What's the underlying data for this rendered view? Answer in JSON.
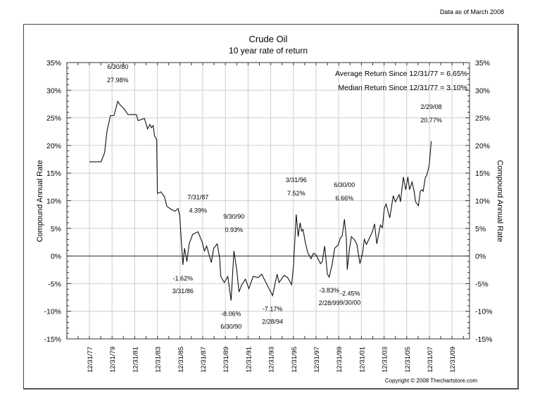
{
  "header": {
    "as_of": "Data as of March 2008"
  },
  "footer": {
    "copyright": "Copyright © 2008 Thechartstore.com"
  },
  "chart_data": {
    "type": "line",
    "title": "Crude Oil",
    "subtitle": "10 year rate of return",
    "xlabel": "",
    "ylabel": "Compound Annual Rate",
    "ylabel_right": "Compound Annual Rate",
    "ylim": [
      -15,
      35
    ],
    "xlim": [
      1976.0,
      2011.6
    ],
    "grid": true,
    "y_ticks": [
      35,
      30,
      25,
      20,
      15,
      10,
      5,
      0,
      -5,
      -10,
      -15
    ],
    "y_tick_labels": [
      "35%",
      "30%",
      "25%",
      "20%",
      "15%",
      "10%",
      "5%",
      "0%",
      "-5%",
      "-10%",
      "-15%"
    ],
    "x_ticks": [
      1978,
      1980,
      1982,
      1984,
      1986,
      1988,
      1990,
      1992,
      1994,
      1996,
      1998,
      2000,
      2002,
      2004,
      2006,
      2008,
      2010
    ],
    "x_tick_labels": [
      "12/31/77",
      "12/31/79",
      "12/31/81",
      "12/31/83",
      "12/31/85",
      "12/31/87",
      "12/31/89",
      "12/31/91",
      "12/31/93",
      "12/31/95",
      "12/31/97",
      "12/31/99",
      "12/31/01",
      "12/31/03",
      "12/31/05",
      "12/31/07",
      "12/31/09"
    ],
    "stats": [
      "Average Return Since 12/31/77 = 6.65%",
      "Median Return Since 12/31/77 = 3.10%"
    ],
    "series": [
      {
        "name": "Crude Oil 10 year rate of return",
        "x": [
          1978.0,
          1979.03,
          1979.34,
          1979.55,
          1979.86,
          1980.17,
          1980.5,
          1980.69,
          1981.06,
          1981.41,
          1982.14,
          1982.3,
          1982.86,
          1983.13,
          1983.34,
          1983.48,
          1983.63,
          1983.75,
          1983.94,
          1984.0,
          1984.31,
          1984.62,
          1984.83,
          1985.24,
          1985.55,
          1985.82,
          1985.97,
          1986.25,
          1986.39,
          1986.6,
          1986.8,
          1987.11,
          1987.58,
          1987.94,
          1988.15,
          1988.35,
          1988.76,
          1988.97,
          1989.28,
          1989.49,
          1989.59,
          1989.9,
          1990.21,
          1990.5,
          1990.75,
          1991.0,
          1991.2,
          1991.45,
          1991.77,
          1992.07,
          1992.45,
          1992.9,
          1993.2,
          1993.63,
          1994.16,
          1994.56,
          1994.73,
          1995.18,
          1995.49,
          1995.84,
          1996.0,
          1996.25,
          1996.42,
          1996.59,
          1996.73,
          1996.85,
          1997.04,
          1997.25,
          1997.56,
          1997.77,
          1998.0,
          1998.39,
          1998.55,
          1998.76,
          1999.0,
          1999.16,
          1999.43,
          1999.64,
          1999.95,
          2000.15,
          2000.3,
          2000.5,
          2000.68,
          2000.75,
          2000.95,
          2001.12,
          2001.4,
          2001.6,
          2001.87,
          2002.1,
          2002.26,
          2002.45,
          2002.7,
          2002.95,
          2003.16,
          2003.36,
          2003.67,
          2003.85,
          2004.02,
          2004.18,
          2004.5,
          2004.81,
          2005.0,
          2005.33,
          2005.45,
          2005.7,
          2005.91,
          2006.1,
          2006.25,
          2006.47,
          2006.65,
          2006.78,
          2007.03,
          2007.19,
          2007.35,
          2007.45,
          2007.65,
          2007.75,
          2007.98,
          2008.06,
          2008.16
        ],
        "y": [
          17.05,
          17.05,
          18.7,
          22.6,
          25.4,
          25.4,
          27.98,
          27.4,
          26.6,
          25.6,
          25.6,
          24.5,
          24.9,
          23.0,
          23.8,
          23.2,
          23.6,
          21.7,
          21.1,
          11.3,
          11.6,
          10.7,
          9.0,
          8.4,
          8.1,
          8.6,
          7.3,
          -1.62,
          1.4,
          -1.0,
          2.2,
          3.9,
          4.39,
          2.6,
          0.9,
          1.8,
          -1.2,
          1.4,
          2.2,
          -0.3,
          -3.7,
          -4.8,
          -3.7,
          -8.06,
          0.93,
          -2.5,
          -6.5,
          -5.2,
          -4.2,
          -5.9,
          -3.7,
          -3.9,
          -3.3,
          -5.0,
          -7.17,
          -3.3,
          -4.8,
          -3.5,
          -3.9,
          -5.2,
          -2.0,
          7.52,
          3.5,
          6.0,
          4.5,
          4.8,
          2.6,
          0.7,
          -0.5,
          0.5,
          0.2,
          -1.4,
          -1.0,
          1.8,
          -3.3,
          -3.83,
          -1.4,
          1.4,
          2.0,
          3.3,
          3.6,
          6.66,
          3.0,
          -2.45,
          1.4,
          3.5,
          2.9,
          2.1,
          -1.4,
          0.5,
          3.0,
          2.1,
          3.2,
          4.3,
          5.8,
          2.2,
          5.6,
          5.1,
          8.6,
          9.4,
          6.9,
          10.9,
          9.8,
          11.1,
          9.8,
          14.3,
          12.0,
          14.3,
          12.0,
          13.4,
          11.7,
          9.8,
          9.1,
          11.7,
          12.0,
          11.7,
          14.3,
          14.5,
          16.4,
          18.3,
          20.77
        ]
      }
    ],
    "annotations": [
      {
        "date": "6/30/80",
        "value": "27.98%",
        "x": 1980.5,
        "y": 27.98,
        "placement": "above"
      },
      {
        "date": "3/31/86",
        "value": "-1.62%",
        "x": 1986.25,
        "y": -1.62,
        "placement": "below"
      },
      {
        "date": "7/31/87",
        "value": "4.39%",
        "x": 1987.58,
        "y": 4.39,
        "placement": "above"
      },
      {
        "date": "6/30/90",
        "value": "-8.06%",
        "x": 1990.5,
        "y": -8.06,
        "placement": "below"
      },
      {
        "date": "9/30/90",
        "value": "0.93%",
        "x": 1990.75,
        "y": 0.93,
        "placement": "above"
      },
      {
        "date": "2/28/94",
        "value": "-7.17%",
        "x": 1994.16,
        "y": -7.17,
        "placement": "below"
      },
      {
        "date": "3/31/96",
        "value": "7.52%",
        "x": 1996.25,
        "y": 7.52,
        "placement": "above"
      },
      {
        "date": "2/28/99",
        "value": "-3.83%",
        "x": 1999.16,
        "y": -3.83,
        "placement": "below"
      },
      {
        "date": "6/30/00",
        "value": "6.66%",
        "x": 2000.5,
        "y": 6.66,
        "placement": "above"
      },
      {
        "date": "9/30/00",
        "value": "-2.45%",
        "x": 2000.75,
        "y": -2.45,
        "placement": "below-right"
      },
      {
        "date": "2/29/08",
        "value": "20.77%",
        "x": 2008.16,
        "y": 20.77,
        "placement": "above"
      }
    ]
  }
}
